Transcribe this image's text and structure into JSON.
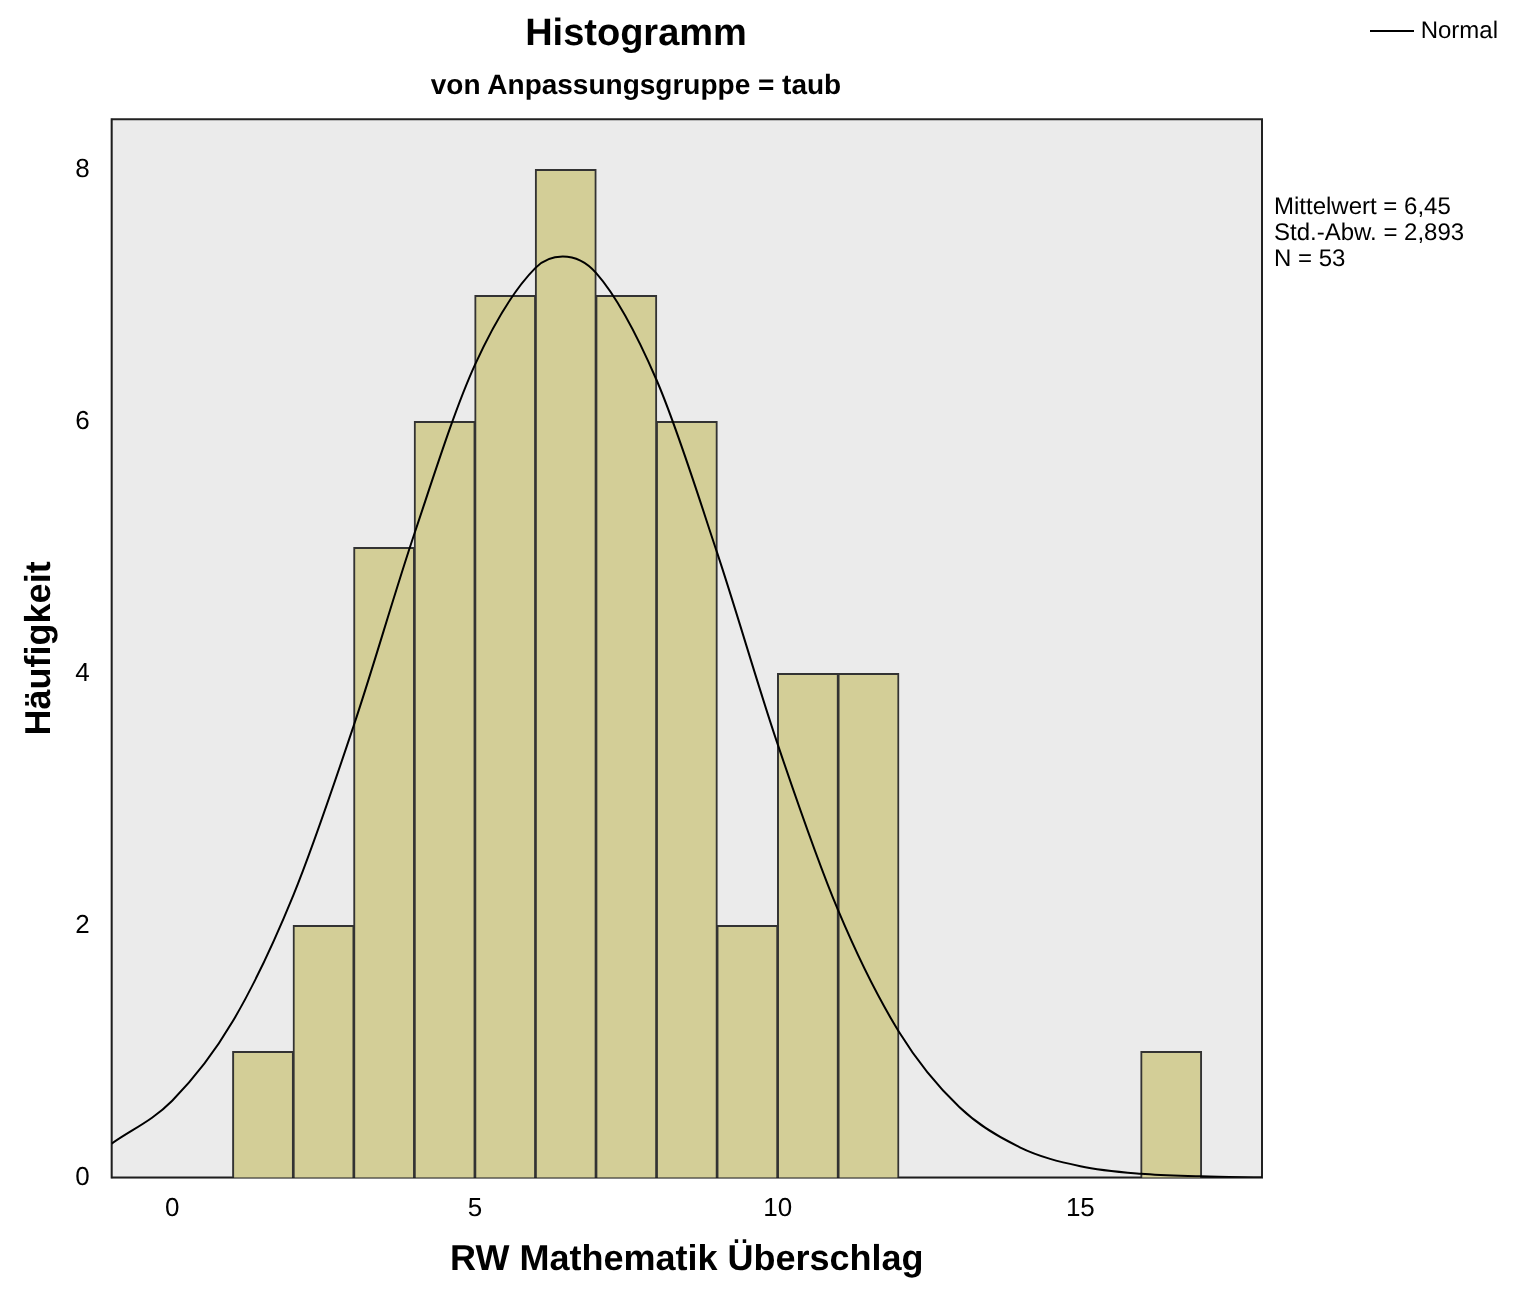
{
  "chart_data": {
    "type": "histogram",
    "title": "Histogramm",
    "subtitle": "von Anpassungsgruppe = taub",
    "xlabel": "RW Mathematik Überschlag",
    "ylabel": "Häufigkeit",
    "bins": [
      1,
      2,
      3,
      4,
      5,
      6,
      7,
      8,
      9,
      10,
      11,
      12,
      13,
      14,
      15,
      16,
      17
    ],
    "values": [
      1,
      2,
      5,
      6,
      7,
      8,
      7,
      6,
      2,
      4,
      4,
      0,
      0,
      0,
      0,
      1
    ],
    "color": "#d3ce97",
    "series": [
      {
        "name": "Normal",
        "type": "line",
        "color": "#000000",
        "x": [
          -1,
          0,
          1,
          2,
          3,
          4,
          5,
          6,
          6.45,
          7,
          8,
          9,
          10,
          11,
          12,
          13,
          14,
          15,
          16,
          17,
          18
        ],
        "values": [
          0.27,
          0.61,
          1.24,
          2.24,
          3.59,
          5.11,
          6.45,
          7.22,
          7.31,
          7.18,
          6.33,
          4.96,
          3.44,
          2.12,
          1.16,
          0.56,
          0.24,
          0.09,
          0.03,
          0.01,
          0
        ]
      }
    ],
    "xlim": [
      -1,
      18
    ],
    "xticks": [
      0,
      5,
      10,
      15
    ],
    "ylim": [
      0,
      8.4
    ],
    "yticks": [
      0,
      2,
      4,
      6,
      8
    ],
    "grid": false,
    "legend": "top right",
    "marker": "none",
    "line_style": "solid",
    "annotations": [
      "Mittelwert = 6,45",
      "Std.-Abw. = 2,893",
      "N = 53"
    ]
  }
}
